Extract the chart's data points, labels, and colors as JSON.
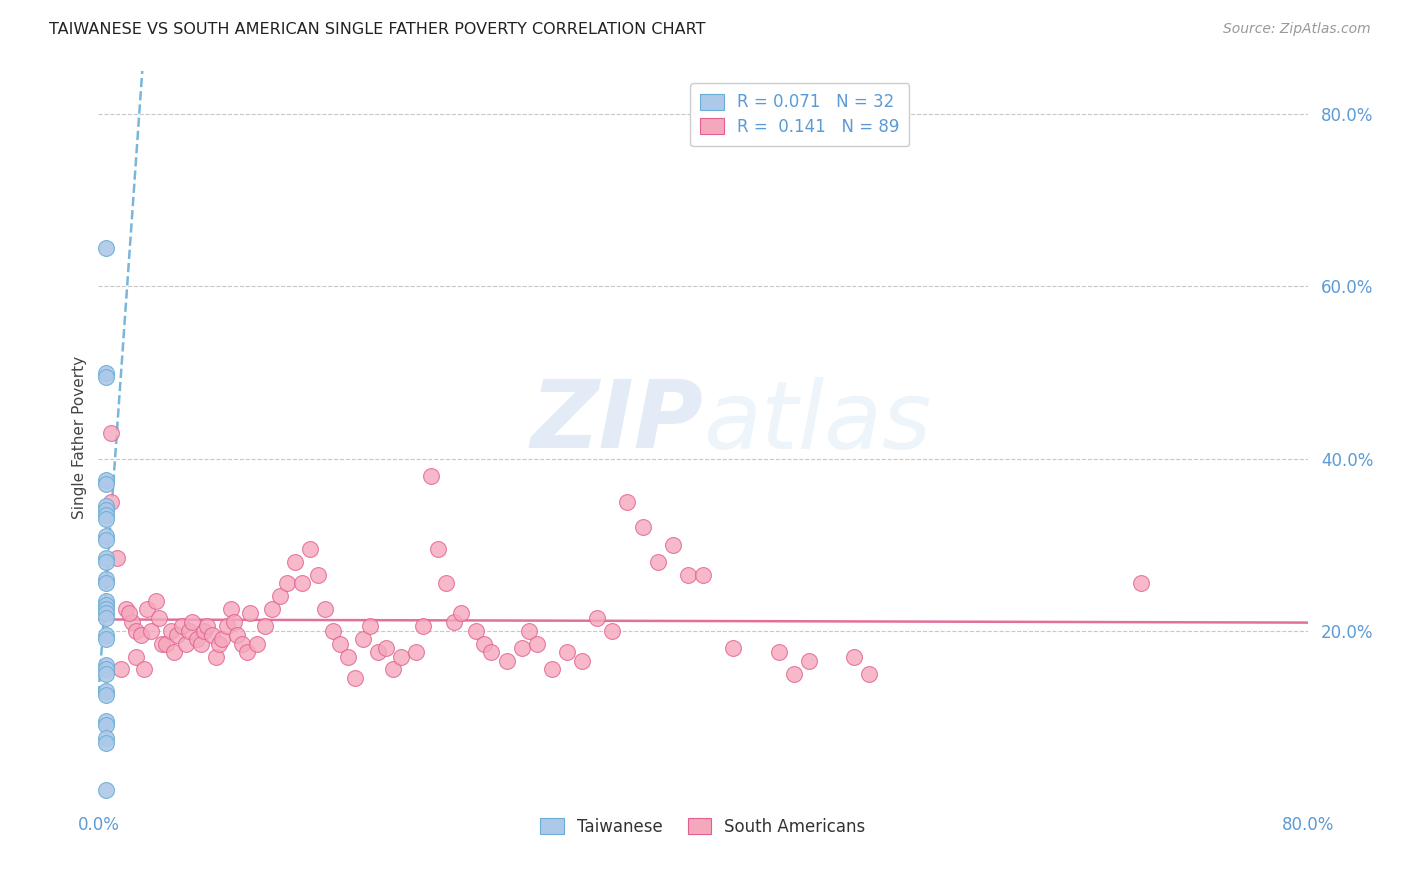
{
  "title": "TAIWANESE VS SOUTH AMERICAN SINGLE FATHER POVERTY CORRELATION CHART",
  "source": "Source: ZipAtlas.com",
  "ylabel": "Single Father Poverty",
  "xlim": [
    0.0,
    0.8
  ],
  "ylim": [
    0.0,
    0.85
  ],
  "watermark_part1": "ZIP",
  "watermark_part2": "atlas",
  "tw_color": "#adc8e8",
  "sa_color": "#f5a8bc",
  "tw_edge_color": "#6aaed6",
  "sa_edge_color": "#e06090",
  "tw_line_color": "#6aaed6",
  "sa_line_color": "#e06090",
  "grid_color": "#c8c8c8",
  "title_color": "#222222",
  "source_color": "#999999",
  "tick_color": "#5b9bd5",
  "ylabel_color": "#444444",
  "taiwanese_x": [
    0.005,
    0.005,
    0.005,
    0.005,
    0.005,
    0.005,
    0.005,
    0.005,
    0.005,
    0.005,
    0.005,
    0.005,
    0.005,
    0.005,
    0.005,
    0.005,
    0.005,
    0.005,
    0.005,
    0.005,
    0.005,
    0.005,
    0.005,
    0.005,
    0.005,
    0.005,
    0.005,
    0.005,
    0.005,
    0.005,
    0.005,
    0.005
  ],
  "taiwanese_y": [
    0.645,
    0.5,
    0.495,
    0.375,
    0.37,
    0.345,
    0.34,
    0.335,
    0.33,
    0.31,
    0.305,
    0.285,
    0.28,
    0.26,
    0.255,
    0.235,
    0.23,
    0.225,
    0.22,
    0.215,
    0.195,
    0.19,
    0.16,
    0.155,
    0.15,
    0.13,
    0.125,
    0.095,
    0.09,
    0.075,
    0.07,
    0.015
  ],
  "south_american_x": [
    0.008,
    0.012,
    0.018,
    0.022,
    0.025,
    0.028,
    0.032,
    0.035,
    0.038,
    0.04,
    0.042,
    0.045,
    0.048,
    0.05,
    0.052,
    0.055,
    0.058,
    0.06,
    0.062,
    0.065,
    0.068,
    0.07,
    0.072,
    0.075,
    0.078,
    0.08,
    0.082,
    0.085,
    0.088,
    0.09,
    0.092,
    0.095,
    0.098,
    0.1,
    0.105,
    0.11,
    0.115,
    0.12,
    0.125,
    0.13,
    0.135,
    0.14,
    0.145,
    0.15,
    0.155,
    0.16,
    0.165,
    0.17,
    0.175,
    0.18,
    0.185,
    0.19,
    0.195,
    0.2,
    0.21,
    0.215,
    0.22,
    0.225,
    0.23,
    0.235,
    0.24,
    0.25,
    0.255,
    0.26,
    0.27,
    0.28,
    0.285,
    0.29,
    0.3,
    0.31,
    0.32,
    0.33,
    0.34,
    0.35,
    0.36,
    0.37,
    0.38,
    0.39,
    0.4,
    0.42,
    0.45,
    0.46,
    0.47,
    0.5,
    0.51,
    0.69,
    0.008,
    0.015,
    0.02,
    0.025,
    0.03
  ],
  "south_american_y": [
    0.43,
    0.285,
    0.225,
    0.21,
    0.2,
    0.195,
    0.225,
    0.2,
    0.235,
    0.215,
    0.185,
    0.185,
    0.2,
    0.175,
    0.195,
    0.205,
    0.185,
    0.2,
    0.21,
    0.19,
    0.185,
    0.2,
    0.205,
    0.195,
    0.17,
    0.185,
    0.19,
    0.205,
    0.225,
    0.21,
    0.195,
    0.185,
    0.175,
    0.22,
    0.185,
    0.205,
    0.225,
    0.24,
    0.255,
    0.28,
    0.255,
    0.295,
    0.265,
    0.225,
    0.2,
    0.185,
    0.17,
    0.145,
    0.19,
    0.205,
    0.175,
    0.18,
    0.155,
    0.17,
    0.175,
    0.205,
    0.38,
    0.295,
    0.255,
    0.21,
    0.22,
    0.2,
    0.185,
    0.175,
    0.165,
    0.18,
    0.2,
    0.185,
    0.155,
    0.175,
    0.165,
    0.215,
    0.2,
    0.35,
    0.32,
    0.28,
    0.3,
    0.265,
    0.265,
    0.18,
    0.175,
    0.15,
    0.165,
    0.17,
    0.15,
    0.255,
    0.35,
    0.155,
    0.22,
    0.17,
    0.155
  ]
}
